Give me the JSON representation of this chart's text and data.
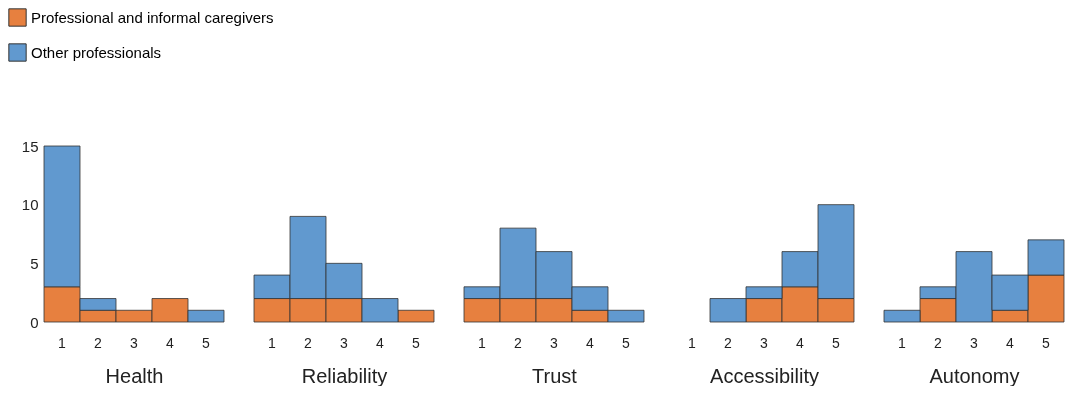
{
  "chart_data": [
    {
      "type": "bar",
      "stacked": true,
      "xlabel": "Health",
      "categories": [
        "1",
        "2",
        "3",
        "4",
        "5"
      ],
      "ylim": [
        0,
        15
      ],
      "yticks": [
        0,
        5,
        10,
        15
      ],
      "legend": "top left",
      "series": [
        {
          "name": "Professional and informal caregivers",
          "color": "#e7803f",
          "values": [
            3,
            1,
            1,
            2,
            0
          ]
        },
        {
          "name": "Other professionals",
          "color": "#6199cf",
          "values": [
            12,
            1,
            0,
            0,
            1
          ]
        }
      ]
    },
    {
      "type": "bar",
      "stacked": true,
      "xlabel": "Reliability",
      "categories": [
        "1",
        "2",
        "3",
        "4",
        "5"
      ],
      "ylim": [
        0,
        15
      ],
      "tick_labels": "x",
      "series": [
        {
          "color": "#e7803f",
          "values": [
            2,
            2,
            2,
            0,
            1
          ]
        },
        {
          "color": "#6199cf",
          "values": [
            2,
            7,
            3,
            2,
            0
          ]
        }
      ]
    },
    {
      "type": "bar",
      "stacked": true,
      "xlabel": "Trust",
      "categories": [
        "1",
        "2",
        "3",
        "4",
        "5"
      ],
      "ylim": [
        0,
        15
      ],
      "tick_labels": "x",
      "series": [
        {
          "color": "#e7803f",
          "values": [
            2,
            2,
            2,
            1,
            0
          ]
        },
        {
          "color": "#6199cf",
          "values": [
            1,
            6,
            4,
            2,
            1
          ]
        }
      ]
    },
    {
      "type": "bar",
      "stacked": true,
      "xlabel": "Accessibility",
      "categories": [
        "1",
        "2",
        "3",
        "4",
        "5"
      ],
      "ylim": [
        0,
        15
      ],
      "tick_labels": "x",
      "series": [
        {
          "color": "#e7803f",
          "values": [
            0,
            0,
            2,
            3,
            2
          ]
        },
        {
          "color": "#6199cf",
          "values": [
            0,
            2,
            1,
            3,
            8
          ]
        }
      ]
    },
    {
      "type": "bar",
      "stacked": true,
      "xlabel": "Autonomy",
      "categories": [
        "1",
        "2",
        "3",
        "4",
        "5"
      ],
      "ylim": [
        0,
        15
      ],
      "tick_labels": "x",
      "series": [
        {
          "color": "#e7803f",
          "values": [
            0,
            2,
            0,
            1,
            4
          ]
        },
        {
          "color": "#6199cf",
          "values": [
            1,
            1,
            6,
            3,
            3
          ]
        }
      ]
    }
  ]
}
